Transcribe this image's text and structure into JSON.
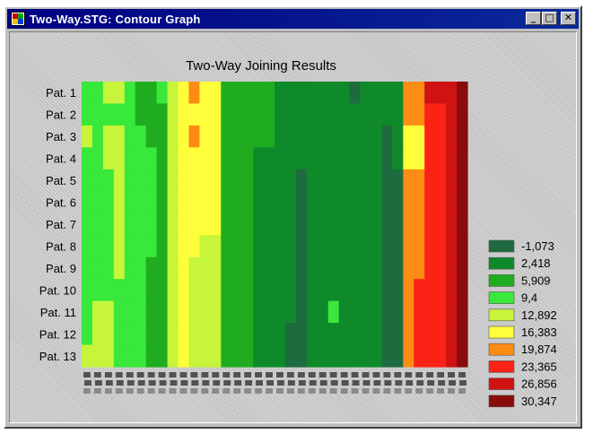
{
  "window": {
    "title": "Two-Way.STG: Contour Graph",
    "icon": "chart-app-icon",
    "controls": [
      "minimize",
      "maximize",
      "close"
    ]
  },
  "chart_data": {
    "type": "heatmap",
    "title": "Two-Way Joining Results",
    "rows": [
      "Pat. 1",
      "Pat. 2",
      "Pat. 3",
      "Pat. 4",
      "Pat. 5",
      "Pat. 6",
      "Pat. 7",
      "Pat. 8",
      "Pat. 9",
      "Pat. 10",
      "Pat. 11",
      "Pat. 12",
      "Pat. 13"
    ],
    "column_count": 36,
    "legend": {
      "placement": "right",
      "levels": [
        "-1,073",
        "2,418",
        "5,909",
        "9,4",
        "12,892",
        "16,383",
        "19,874",
        "23,365",
        "26,856",
        "30,347"
      ],
      "colors": [
        "#1e6b3f",
        "#0f8a2a",
        "#1fad1f",
        "#38e83a",
        "#c6f53b",
        "#fefe3a",
        "#fd8c14",
        "#fc2216",
        "#cf1212",
        "#8a0b0b"
      ]
    },
    "values": [
      [
        3,
        3,
        4,
        4,
        3,
        2,
        2,
        3,
        4,
        5,
        6,
        5,
        5,
        2,
        2,
        2,
        2,
        2,
        1,
        1,
        1,
        1,
        1,
        1,
        1,
        0,
        1,
        1,
        1,
        1,
        6,
        6,
        8,
        8,
        8,
        9
      ],
      [
        3,
        3,
        3,
        3,
        3,
        2,
        2,
        2,
        4,
        5,
        5,
        5,
        5,
        2,
        2,
        2,
        2,
        2,
        1,
        1,
        1,
        1,
        1,
        1,
        1,
        1,
        1,
        1,
        1,
        1,
        6,
        6,
        7,
        7,
        8,
        9
      ],
      [
        4,
        3,
        4,
        4,
        3,
        3,
        2,
        2,
        4,
        5,
        6,
        5,
        5,
        2,
        2,
        2,
        2,
        2,
        1,
        1,
        1,
        1,
        1,
        1,
        1,
        1,
        1,
        1,
        0,
        1,
        5,
        5,
        7,
        7,
        8,
        9
      ],
      [
        3,
        3,
        4,
        4,
        3,
        3,
        3,
        2,
        4,
        5,
        5,
        5,
        5,
        2,
        2,
        2,
        1,
        1,
        1,
        1,
        1,
        1,
        1,
        1,
        1,
        1,
        1,
        1,
        0,
        1,
        5,
        5,
        7,
        7,
        8,
        9
      ],
      [
        3,
        3,
        3,
        4,
        3,
        3,
        3,
        2,
        4,
        5,
        5,
        5,
        5,
        2,
        2,
        2,
        1,
        1,
        1,
        1,
        0,
        1,
        1,
        1,
        1,
        1,
        1,
        1,
        0,
        0,
        6,
        6,
        7,
        7,
        8,
        9
      ],
      [
        3,
        3,
        3,
        4,
        3,
        3,
        3,
        2,
        4,
        5,
        5,
        5,
        5,
        2,
        2,
        2,
        1,
        1,
        1,
        1,
        0,
        1,
        1,
        1,
        1,
        1,
        1,
        1,
        0,
        0,
        6,
        6,
        7,
        7,
        8,
        9
      ],
      [
        3,
        3,
        3,
        4,
        3,
        3,
        3,
        2,
        4,
        5,
        5,
        5,
        5,
        2,
        2,
        2,
        1,
        1,
        1,
        1,
        0,
        1,
        1,
        1,
        1,
        1,
        1,
        1,
        0,
        0,
        6,
        6,
        7,
        7,
        8,
        9
      ],
      [
        3,
        3,
        3,
        4,
        3,
        3,
        3,
        2,
        4,
        5,
        5,
        4,
        4,
        2,
        2,
        2,
        1,
        1,
        1,
        1,
        0,
        1,
        1,
        1,
        1,
        1,
        1,
        1,
        0,
        0,
        6,
        6,
        7,
        7,
        8,
        9
      ],
      [
        3,
        3,
        3,
        4,
        3,
        3,
        2,
        2,
        4,
        5,
        4,
        4,
        4,
        2,
        2,
        2,
        1,
        1,
        1,
        1,
        0,
        1,
        1,
        1,
        1,
        1,
        1,
        1,
        0,
        0,
        6,
        6,
        7,
        7,
        8,
        9
      ],
      [
        3,
        3,
        3,
        3,
        3,
        3,
        2,
        2,
        4,
        5,
        4,
        4,
        4,
        2,
        2,
        2,
        1,
        1,
        1,
        1,
        0,
        1,
        1,
        1,
        1,
        1,
        1,
        1,
        0,
        0,
        6,
        7,
        7,
        7,
        8,
        9
      ],
      [
        3,
        4,
        4,
        3,
        3,
        3,
        2,
        2,
        4,
        5,
        4,
        4,
        4,
        2,
        2,
        2,
        1,
        1,
        1,
        1,
        0,
        1,
        1,
        3,
        1,
        1,
        1,
        1,
        0,
        0,
        6,
        7,
        7,
        7,
        8,
        9
      ],
      [
        3,
        4,
        4,
        3,
        3,
        3,
        2,
        2,
        4,
        5,
        4,
        4,
        4,
        2,
        2,
        2,
        1,
        1,
        1,
        0,
        0,
        1,
        1,
        1,
        1,
        1,
        1,
        1,
        0,
        0,
        6,
        7,
        7,
        7,
        8,
        9
      ],
      [
        4,
        4,
        4,
        3,
        3,
        3,
        2,
        2,
        4,
        5,
        4,
        4,
        4,
        2,
        2,
        2,
        1,
        1,
        1,
        0,
        0,
        1,
        1,
        1,
        1,
        1,
        1,
        1,
        0,
        0,
        6,
        7,
        7,
        7,
        8,
        9
      ]
    ]
  }
}
